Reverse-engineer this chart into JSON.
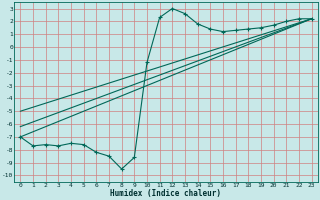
{
  "xlabel": "Humidex (Indice chaleur)",
  "bg_color": "#c8e8e8",
  "grid_color": "#d08080",
  "line_color": "#006858",
  "xlim": [
    -0.5,
    23.5
  ],
  "ylim": [
    -10.5,
    3.5
  ],
  "xticks": [
    0,
    1,
    2,
    3,
    4,
    5,
    6,
    7,
    8,
    9,
    10,
    11,
    12,
    13,
    14,
    15,
    16,
    17,
    18,
    19,
    20,
    21,
    22,
    23
  ],
  "yticks": [
    3,
    2,
    1,
    0,
    -1,
    -2,
    -3,
    -4,
    -5,
    -6,
    -7,
    -8,
    -9,
    -10
  ],
  "main_x": [
    0,
    1,
    2,
    3,
    4,
    5,
    6,
    7,
    8,
    9,
    10,
    11,
    12,
    13,
    14,
    15,
    16,
    17,
    18,
    19,
    20,
    21,
    22,
    23
  ],
  "main_y": [
    -7.0,
    -7.7,
    -7.6,
    -7.7,
    -7.5,
    -7.6,
    -8.2,
    -8.5,
    -9.5,
    -8.6,
    -1.2,
    2.3,
    3.0,
    2.6,
    1.8,
    1.4,
    1.2,
    1.3,
    1.4,
    1.5,
    1.7,
    2.0,
    2.2,
    2.2
  ],
  "line1_x": [
    0,
    23
  ],
  "line1_y": [
    -7.0,
    2.2
  ],
  "line2_x": [
    0,
    23
  ],
  "line2_y": [
    -6.2,
    2.2
  ],
  "line3_x": [
    0,
    23
  ],
  "line3_y": [
    -5.0,
    2.2
  ]
}
